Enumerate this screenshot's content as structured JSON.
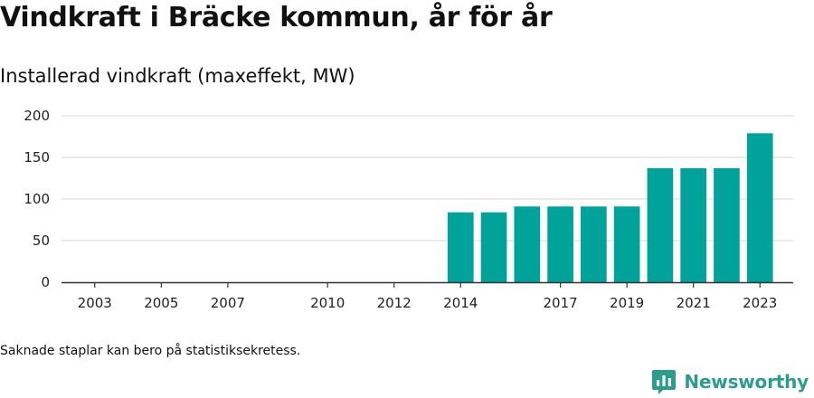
{
  "title": "Vindkraft i Bräcke kommun, år för år",
  "subtitle": "Installerad vindkraft (maxeffekt, MW)",
  "footnote": "Saknade staplar kan bero på statistiksekretess.",
  "brand": {
    "name": "Newsworthy",
    "icon": "newsworthy-logo-icon"
  },
  "colors": {
    "bar": "#00a39a",
    "grid": "#dddddd",
    "axis": "#333333",
    "brand": "#2a9d8f"
  },
  "chart_data": {
    "type": "bar",
    "title": "",
    "xlabel": "",
    "ylabel": "",
    "ylim": [
      0,
      200
    ],
    "yticks": [
      0,
      50,
      100,
      150,
      200
    ],
    "xlim": [
      2002,
      2024
    ],
    "xticks": [
      2003,
      2005,
      2007,
      2010,
      2012,
      2014,
      2017,
      2019,
      2021,
      2023
    ],
    "grid": true,
    "categories": [
      2014,
      2015,
      2016,
      2017,
      2018,
      2019,
      2020,
      2021,
      2022,
      2023
    ],
    "values": [
      84,
      84,
      91,
      91,
      91,
      91,
      137,
      137,
      137,
      179
    ]
  }
}
